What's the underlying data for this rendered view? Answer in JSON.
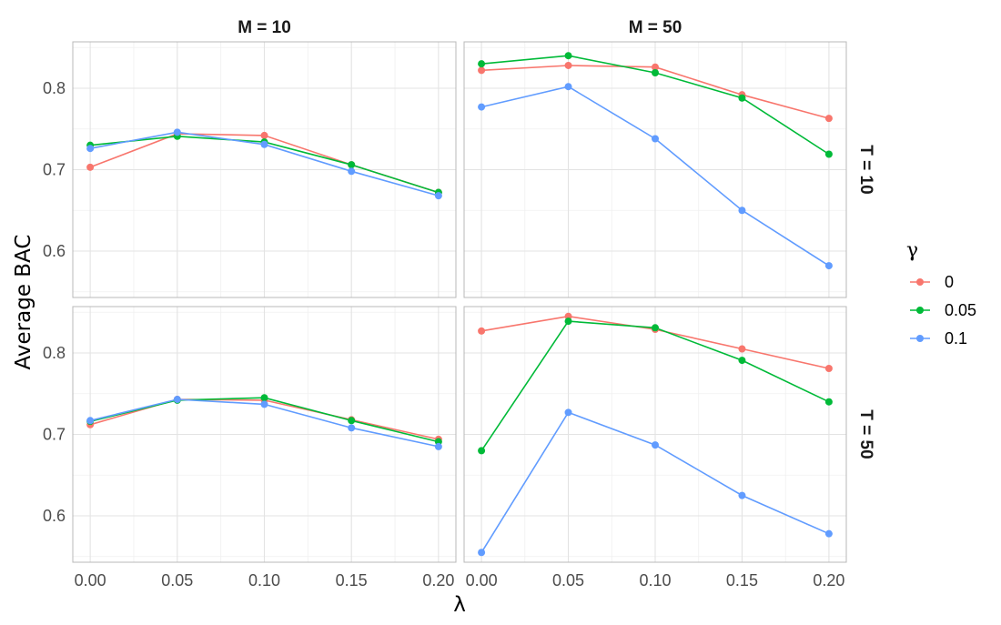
{
  "chart_data": {
    "type": "line",
    "xlabel": "λ",
    "ylabel": "Average BAC",
    "x": [
      0.0,
      0.05,
      0.1,
      0.15,
      0.2
    ],
    "x_tick_labels": [
      "0.00",
      "0.05",
      "0.10",
      "0.15",
      "0.20"
    ],
    "y_tick_labels": [
      "0.6",
      "0.7",
      "0.8"
    ],
    "xlim": [
      -0.01,
      0.21
    ],
    "grid": true,
    "legend": {
      "title": "γ",
      "position": "right",
      "entries": [
        {
          "label": "0",
          "color": "#F8766D"
        },
        {
          "label": "0.05",
          "color": "#00BA38"
        },
        {
          "label": "0.1",
          "color": "#619CFF"
        }
      ]
    },
    "facets": {
      "columns": [
        "M = 10",
        "M = 50"
      ],
      "rows": [
        "T = 10",
        "T = 50"
      ]
    },
    "panels": [
      {
        "col": "M = 10",
        "row": "T = 10",
        "ylim": [
          0.543,
          0.857
        ],
        "series": [
          {
            "name": "0",
            "color": "#F8766D",
            "values": [
              0.703,
              0.744,
              0.742,
              0.706,
              0.672
            ]
          },
          {
            "name": "0.05",
            "color": "#00BA38",
            "values": [
              0.73,
              0.741,
              0.734,
              0.706,
              0.672
            ]
          },
          {
            "name": "0.1",
            "color": "#619CFF",
            "values": [
              0.726,
              0.746,
              0.731,
              0.698,
              0.668
            ]
          }
        ]
      },
      {
        "col": "M = 50",
        "row": "T = 10",
        "ylim": [
          0.543,
          0.857
        ],
        "series": [
          {
            "name": "0",
            "color": "#F8766D",
            "values": [
              0.822,
              0.828,
              0.826,
              0.792,
              0.763
            ]
          },
          {
            "name": "0.05",
            "color": "#00BA38",
            "values": [
              0.83,
              0.84,
              0.819,
              0.788,
              0.719
            ]
          },
          {
            "name": "0.1",
            "color": "#619CFF",
            "values": [
              0.777,
              0.802,
              0.738,
              0.65,
              0.582
            ]
          }
        ]
      },
      {
        "col": "M = 10",
        "row": "T = 50",
        "ylim": [
          0.543,
          0.857
        ],
        "series": [
          {
            "name": "0",
            "color": "#F8766D",
            "values": [
              0.712,
              0.743,
              0.742,
              0.718,
              0.694
            ]
          },
          {
            "name": "0.05",
            "color": "#00BA38",
            "values": [
              0.716,
              0.742,
              0.745,
              0.717,
              0.691
            ]
          },
          {
            "name": "0.1",
            "color": "#619CFF",
            "values": [
              0.717,
              0.743,
              0.737,
              0.708,
              0.685
            ]
          }
        ]
      },
      {
        "col": "M = 50",
        "row": "T = 50",
        "ylim": [
          0.543,
          0.857
        ],
        "series": [
          {
            "name": "0",
            "color": "#F8766D",
            "values": [
              0.827,
              0.845,
              0.829,
              0.805,
              0.781
            ]
          },
          {
            "name": "0.05",
            "color": "#00BA38",
            "values": [
              0.68,
              0.839,
              0.831,
              0.791,
              0.74
            ]
          },
          {
            "name": "0.1",
            "color": "#619CFF",
            "values": [
              0.555,
              0.727,
              0.687,
              0.625,
              0.578
            ]
          }
        ]
      }
    ]
  }
}
